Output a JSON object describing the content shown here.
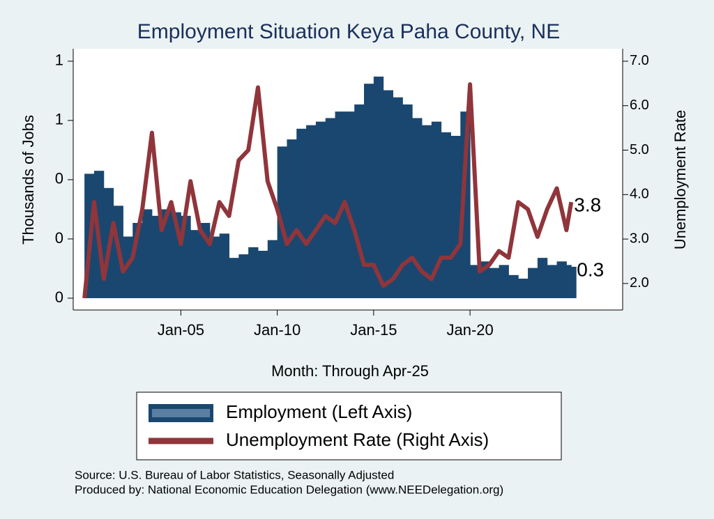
{
  "chart_data": {
    "type": "bar-line",
    "title": "Employment Situation Keya Paha  County, NE",
    "y_label": "Thousands of Jobs",
    "y2_label": "Unemployment Rate",
    "x_label": "Month: Through Apr-25",
    "source": "Source: U.S. Bureau of Labor Statistics, Seasonally Adjusted",
    "producer": "Produced by: National Economic Education Delegation (www.NEEDelegation.org)",
    "x": [
      "Jan-00",
      "Jul-00",
      "Jan-01",
      "Jul-01",
      "Jan-02",
      "Jul-02",
      "Jan-03",
      "Jul-03",
      "Jan-04",
      "Jul-04",
      "Jan-05",
      "Jul-05",
      "Jan-06",
      "Jul-06",
      "Jan-07",
      "Jul-07",
      "Jan-08",
      "Jul-08",
      "Jan-09",
      "Jul-09",
      "Jan-10",
      "Jul-10",
      "Jan-11",
      "Jul-11",
      "Jan-12",
      "Jul-12",
      "Jan-13",
      "Jul-13",
      "Jan-14",
      "Jul-14",
      "Jan-15",
      "Jul-15",
      "Jan-16",
      "Jul-16",
      "Jan-17",
      "Jul-17",
      "Jan-18",
      "Jul-18",
      "Jan-19",
      "Jul-19",
      "Jan-20",
      "Jul-20",
      "Jan-21",
      "Jul-21",
      "Jan-22",
      "Jul-22",
      "Jan-23",
      "Jul-23",
      "Jan-24",
      "Jul-24",
      "Jan-25",
      "Apr-25"
    ],
    "series": [
      {
        "name": "Employment (Left Axis)",
        "color": "#1a476f",
        "axis": "y",
        "kind": "bar",
        "last_label": "0.3",
        "values": [
          0.41,
          0.415,
          0.386,
          0.356,
          0.304,
          0.327,
          0.35,
          0.339,
          0.35,
          0.345,
          0.339,
          0.315,
          0.327,
          0.304,
          0.309,
          0.268,
          0.274,
          0.286,
          0.28,
          0.298,
          0.456,
          0.468,
          0.486,
          0.492,
          0.498,
          0.504,
          0.515,
          0.515,
          0.527,
          0.562,
          0.574,
          0.551,
          0.539,
          0.527,
          0.504,
          0.492,
          0.498,
          0.48,
          0.474,
          0.515,
          0.256,
          0.262,
          0.251,
          0.256,
          0.239,
          0.233,
          0.251,
          0.268,
          0.256,
          0.262,
          0.256,
          0.253
        ]
      },
      {
        "name": "Unemployment Rate (Right Axis)",
        "color": "#90353b",
        "axis": "y2",
        "kind": "line",
        "last_label": "3.8",
        "values": [
          1.67,
          3.83,
          2.1,
          3.36,
          2.27,
          2.58,
          3.67,
          5.39,
          3.2,
          3.83,
          2.89,
          4.3,
          3.2,
          2.89,
          3.83,
          3.52,
          4.77,
          5.0,
          6.41,
          4.3,
          3.67,
          2.89,
          3.2,
          2.89,
          3.2,
          3.52,
          3.36,
          3.83,
          3.2,
          2.42,
          2.42,
          1.95,
          2.1,
          2.42,
          2.58,
          2.27,
          2.1,
          2.58,
          2.58,
          2.89,
          6.48,
          2.27,
          2.42,
          2.73,
          2.58,
          3.83,
          3.67,
          3.05,
          3.67,
          4.14,
          3.2,
          3.83
        ]
      }
    ],
    "xlim": [
      "Jun-99",
      "Dec-27"
    ],
    "xticks": [
      "Jan-05",
      "Jan-10",
      "Jan-15",
      "Jan-20"
    ],
    "ylim": [
      0.2,
      0.621
    ],
    "yticks": [
      {
        "value": 0.2,
        "label": "0"
      },
      {
        "value": 0.3,
        "label": "0"
      },
      {
        "value": 0.4,
        "label": "0"
      },
      {
        "value": 0.5,
        "label": "1"
      },
      {
        "value": 0.6,
        "label": "1"
      }
    ],
    "y2lim": [
      1.67,
      7.28
    ],
    "y2ticks": [
      {
        "value": 2,
        "label": "2.0"
      },
      {
        "value": 3,
        "label": "3.0"
      },
      {
        "value": 4,
        "label": "4.0"
      },
      {
        "value": 5,
        "label": "5.0"
      },
      {
        "value": 6,
        "label": "6.0"
      },
      {
        "value": 7,
        "label": "7.0"
      }
    ]
  }
}
